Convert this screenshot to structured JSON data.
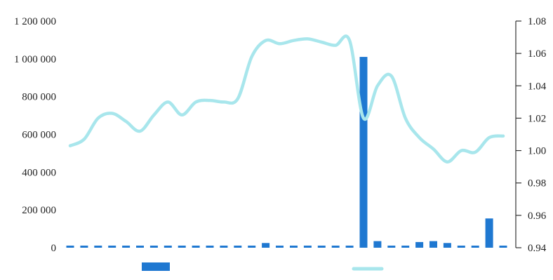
{
  "chart_data": {
    "type": "bar",
    "title": "",
    "xlabel": "",
    "categories_count": 32,
    "series": [
      {
        "kind": "bar",
        "axis": "left",
        "color": "#1f78d1",
        "values": [
          8000,
          6000,
          4000,
          3000,
          3000,
          2000,
          2000,
          1000,
          6000,
          1000,
          1000,
          1000,
          1000,
          1000,
          25000,
          1000,
          1000,
          1000,
          1000,
          1000,
          1000,
          1010000,
          35000,
          0,
          10000,
          30000,
          35000,
          25000,
          1000,
          1000,
          155000,
          0
        ]
      },
      {
        "kind": "line",
        "axis": "right",
        "color": "#a8e6ec",
        "values": [
          1.003,
          1.007,
          1.02,
          1.023,
          1.018,
          1.012,
          1.022,
          1.03,
          1.022,
          1.03,
          1.031,
          1.03,
          1.032,
          1.058,
          1.068,
          1.066,
          1.068,
          1.069,
          1.067,
          1.065,
          1.068,
          1.02,
          1.04,
          1.046,
          1.02,
          1.008,
          1.001,
          0.993,
          1.0,
          0.999,
          1.008,
          1.009
        ]
      }
    ],
    "y_left": {
      "min": 0,
      "max": 1200000,
      "ticks": [
        0,
        200000,
        400000,
        600000,
        800000,
        1000000,
        1200000
      ],
      "tick_labels": [
        "0",
        "200 000",
        "400 000",
        "600 000",
        "800 000",
        "1 000 000",
        "1 200 000"
      ]
    },
    "y_right": {
      "min": 0.94,
      "max": 1.08,
      "ticks": [
        0.94,
        0.96,
        0.98,
        1.0,
        1.02,
        1.04,
        1.06,
        1.08
      ],
      "tick_labels": [
        "0.94",
        "0.96",
        "0.98",
        "1.00",
        "1.02",
        "1.04",
        "1.06",
        "1.08"
      ]
    },
    "grid": false,
    "legend": {
      "position": "bottom",
      "entries": [
        {
          "kind": "bar",
          "color": "#1f78d1",
          "label": ""
        },
        {
          "kind": "line",
          "color": "#a8e6ec",
          "label": ""
        }
      ]
    }
  }
}
